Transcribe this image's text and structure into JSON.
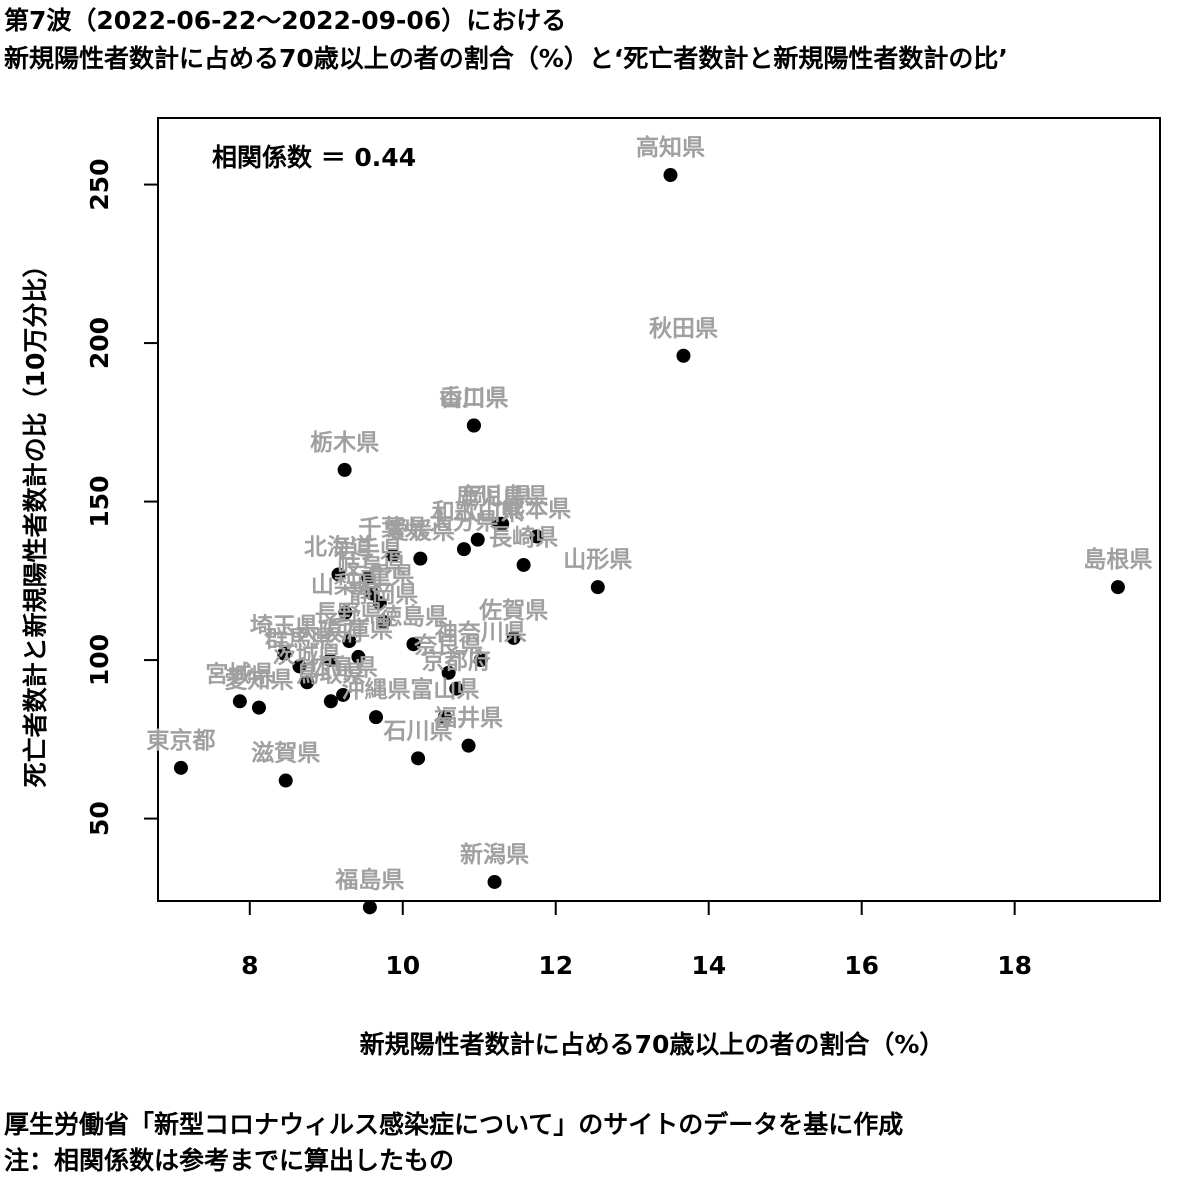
{
  "titles": {
    "line1": "第7波（2022-06-22〜2022-09-06）における",
    "line2": "新規陽性者数計に占める70歳以上の者の割合（%）と‘死亡者数計と新規陽性者数計の比’"
  },
  "footnotes": {
    "line1": "厚生労働省「新型コロナウィルス感染症について」のサイトのデータを基に作成",
    "line2": "注：相関係数は参考までに算出したもの"
  },
  "chart_data": {
    "type": "scatter",
    "xlabel": "新規陽性者数計に占める70歳以上の者の割合（%）",
    "ylabel": "死亡者数計と新規陽性者数計の比（10万分比）",
    "annotation": "相関係数 ＝ 0.44",
    "xlim": [
      6.8,
      19.9
    ],
    "ylim": [
      24,
      271
    ],
    "xticks": [
      8,
      10,
      12,
      14,
      16,
      18
    ],
    "yticks": [
      50,
      100,
      150,
      200,
      250
    ],
    "grid": false,
    "colors": {
      "point": "#000000",
      "label": "#a0a0a0"
    },
    "points": [
      {
        "label": "高知県",
        "x": 13.5,
        "y": 253
      },
      {
        "label": "秋田県",
        "x": 13.67,
        "y": 196
      },
      {
        "label": "香川県",
        "x": 10.93,
        "y": 174
      },
      {
        "label": "山口県",
        "x": 10.93,
        "y": 174
      },
      {
        "label": "栃木県",
        "x": 9.24,
        "y": 160
      },
      {
        "label": "鹿児島県",
        "x": 11.3,
        "y": 143
      },
      {
        "label": "岡山県",
        "x": 11.25,
        "y": 143
      },
      {
        "label": "熊本県",
        "x": 11.75,
        "y": 139
      },
      {
        "label": "和歌山県",
        "x": 10.98,
        "y": 138
      },
      {
        "label": "長崎県",
        "x": 11.58,
        "y": 130
      },
      {
        "label": "愛媛県",
        "x": 10.23,
        "y": 132
      },
      {
        "label": "千葉県",
        "x": 9.87,
        "y": 133
      },
      {
        "label": "大分県",
        "x": 10.8,
        "y": 135
      },
      {
        "label": "山形県",
        "x": 12.55,
        "y": 123
      },
      {
        "label": "島根県",
        "x": 19.35,
        "y": 123
      },
      {
        "label": "北海道",
        "x": 9.16,
        "y": 127
      },
      {
        "label": "岩手県",
        "x": 9.55,
        "y": 126
      },
      {
        "label": "三重県",
        "x": 9.7,
        "y": 118
      },
      {
        "label": "山梨県",
        "x": 9.25,
        "y": 115
      },
      {
        "label": "岐阜県",
        "x": 9.6,
        "y": 121
      },
      {
        "label": "静岡県",
        "x": 9.75,
        "y": 112
      },
      {
        "label": "徳島県",
        "x": 10.14,
        "y": 105
      },
      {
        "label": "長野県",
        "x": 9.3,
        "y": 106
      },
      {
        "label": "佐賀県",
        "x": 11.45,
        "y": 107
      },
      {
        "label": "奈良県",
        "x": 10.6,
        "y": 96
      },
      {
        "label": "神奈川県",
        "x": 11.02,
        "y": 100
      },
      {
        "label": "京都府",
        "x": 10.7,
        "y": 91
      },
      {
        "label": "埼玉県",
        "x": 8.45,
        "y": 102
      },
      {
        "label": "群馬県",
        "x": 8.65,
        "y": 98
      },
      {
        "label": "茨城県",
        "x": 8.75,
        "y": 93
      },
      {
        "label": "大阪府",
        "x": 9.05,
        "y": 100
      },
      {
        "label": "兵庫県",
        "x": 9.42,
        "y": 101
      },
      {
        "label": "宮城県",
        "x": 7.87,
        "y": 87
      },
      {
        "label": "愛知県",
        "x": 8.12,
        "y": 85
      },
      {
        "label": "広島県",
        "x": 9.22,
        "y": 89
      },
      {
        "label": "鳥取県",
        "x": 9.06,
        "y": 87
      },
      {
        "label": "富山県",
        "x": 10.55,
        "y": 82
      },
      {
        "label": "沖縄県",
        "x": 9.65,
        "y": 82
      },
      {
        "label": "福井県",
        "x": 10.86,
        "y": 73
      },
      {
        "label": "石川県",
        "x": 10.2,
        "y": 69
      },
      {
        "label": "東京都",
        "x": 7.1,
        "y": 66
      },
      {
        "label": "滋賀県",
        "x": 8.47,
        "y": 62
      },
      {
        "label": "新潟県",
        "x": 11.2,
        "y": 30
      },
      {
        "label": "福島県",
        "x": 9.57,
        "y": 22
      }
    ]
  }
}
